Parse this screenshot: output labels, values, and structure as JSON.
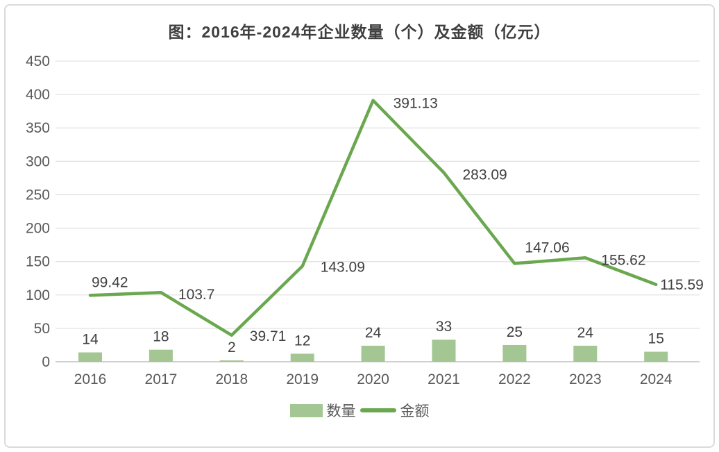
{
  "title": "图：2016年-2024年企业数量（个）及金额（亿元）",
  "legend": {
    "quantity_label": "数量",
    "amount_label": "金额"
  },
  "colors": {
    "bar": "#a3c693",
    "line": "#6aa84f",
    "grid": "#e2e2e2",
    "axis": "#cfcfcf",
    "value_label": "#3f3f3f",
    "tick_label": "#595959"
  },
  "chart_data": {
    "type": "bar+line",
    "title": "图：2016年-2024年企业数量（个）及金额（亿元）",
    "categories": [
      "2016",
      "2017",
      "2018",
      "2019",
      "2020",
      "2021",
      "2022",
      "2023",
      "2024"
    ],
    "series": [
      {
        "name": "数量",
        "type": "bar",
        "values": [
          14,
          18,
          2,
          12,
          24,
          33,
          25,
          24,
          15
        ]
      },
      {
        "name": "金额",
        "type": "line",
        "values": [
          99.42,
          103.7,
          39.71,
          143.09,
          391.13,
          283.09,
          147.06,
          155.62,
          115.59
        ]
      }
    ],
    "xlabel": "",
    "ylabel": "",
    "ylim": [
      0,
      450
    ],
    "yticks": [
      0,
      50,
      100,
      150,
      200,
      250,
      300,
      350,
      400,
      450
    ],
    "grid": true,
    "data_labels": true,
    "legend_position": "bottom"
  }
}
